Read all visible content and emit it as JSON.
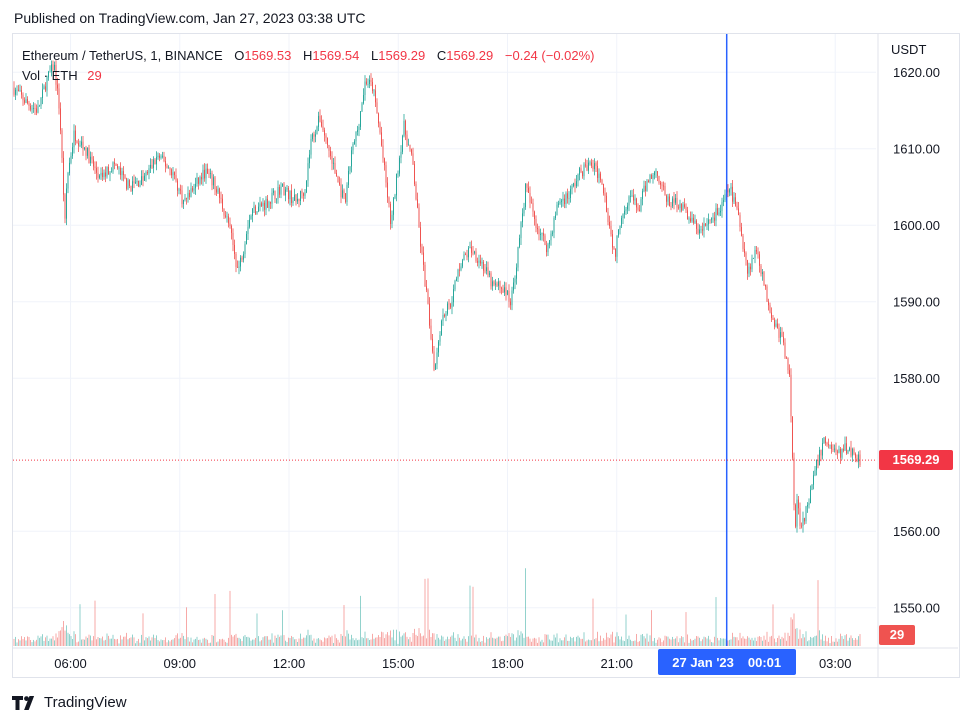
{
  "published": "Published on TradingView.com, Jan 27, 2023 03:38 UTC",
  "legend": {
    "symbol": "Ethereum / TetherUS, 1, BINANCE",
    "o_label": "O",
    "o_value": "1569.53",
    "h_label": "H",
    "h_value": "1569.54",
    "l_label": "L",
    "l_value": "1569.29",
    "c_label": "C",
    "c_value": "1569.29",
    "change": "−0.24 (−0.02%)",
    "vol_label": "Vol · ETH",
    "vol_value": "29"
  },
  "footer": {
    "brand": "TradingView",
    "logo_icon": "tradingview-logo-icon"
  },
  "colors": {
    "up": "#26a69a",
    "down": "#ef5350",
    "crosshair": "#2962ff",
    "last_price": "#f23645",
    "grid": "#f0f3fa"
  },
  "chart_data": {
    "type": "candlestick",
    "currency": "USDT",
    "ylim": [
      1545,
      1625
    ],
    "y_ticks": [
      "1620.00",
      "1610.00",
      "1600.00",
      "1590.00",
      "1580.00",
      "1560.00",
      "1550.00"
    ],
    "y_tick_values": [
      1620,
      1610,
      1600,
      1590,
      1580,
      1560,
      1550
    ],
    "x_ticks": [
      "06:00",
      "09:00",
      "12:00",
      "15:00",
      "18:00",
      "21:00",
      "03:00"
    ],
    "x_tick_hours": [
      6,
      9,
      12,
      15,
      18,
      21,
      27
    ],
    "xlim_hours": [
      4.42,
      28.12
    ],
    "last_price": 1569.29,
    "last_price_label": "1569.29",
    "last_volume_label": "29",
    "crosshair": {
      "hour": 24.02,
      "date_label": "27 Jan '23",
      "time_label": "00:01"
    },
    "path_hours": [
      4.42,
      4.8,
      5.1,
      5.35,
      5.55,
      5.7,
      5.85,
      5.9,
      6.1,
      6.4,
      6.8,
      7.2,
      7.6,
      8.0,
      8.4,
      8.8,
      9.1,
      9.4,
      9.7,
      10.0,
      10.35,
      10.6,
      10.75,
      10.85,
      11.0,
      11.4,
      11.8,
      12.2,
      12.45,
      12.6,
      12.85,
      13.2,
      13.45,
      13.55,
      13.7,
      13.9,
      14.1,
      14.3,
      14.5,
      14.65,
      14.8,
      14.95,
      15.15,
      15.4,
      15.6,
      15.8,
      16.0,
      16.1,
      16.2,
      16.45,
      16.7,
      17.0,
      17.3,
      17.6,
      17.85,
      18.1,
      18.3,
      18.5,
      18.8,
      19.1,
      19.4,
      19.7,
      20.0,
      20.3,
      20.6,
      20.8,
      20.95,
      21.1,
      21.35,
      21.6,
      21.85,
      22.1,
      22.4,
      22.7,
      23.0,
      23.3,
      23.6,
      23.85,
      24.1,
      24.35,
      24.6,
      24.85,
      25.1,
      25.35,
      25.55,
      25.75,
      25.9,
      25.95,
      26.05,
      26.25,
      26.45,
      26.7,
      26.9,
      27.1,
      27.3,
      27.55,
      27.7
    ],
    "path_prices": [
      1618,
      1616,
      1615,
      1619,
      1621,
      1615,
      1600,
      1606,
      1612,
      1610,
      1606,
      1608,
      1605,
      1606,
      1609,
      1607,
      1603,
      1605,
      1607,
      1605,
      1600,
      1594,
      1597,
      1600,
      1602,
      1603,
      1605,
      1603,
      1605,
      1611,
      1614,
      1608,
      1604,
      1603,
      1609,
      1613,
      1619,
      1618,
      1612,
      1606,
      1600,
      1606,
      1613,
      1608,
      1598,
      1590,
      1581,
      1585,
      1588,
      1590,
      1595,
      1597,
      1595,
      1592,
      1592,
      1590,
      1597,
      1605,
      1600,
      1597,
      1603,
      1604,
      1607,
      1608,
      1606,
      1600,
      1596,
      1601,
      1604,
      1602,
      1606,
      1607,
      1603,
      1603,
      1601,
      1599,
      1601,
      1602,
      1605,
      1601,
      1594,
      1597,
      1591,
      1587,
      1585,
      1580,
      1560,
      1564,
      1561,
      1563,
      1568,
      1572,
      1571,
      1570,
      1571,
      1570,
      1569.3
    ]
  }
}
